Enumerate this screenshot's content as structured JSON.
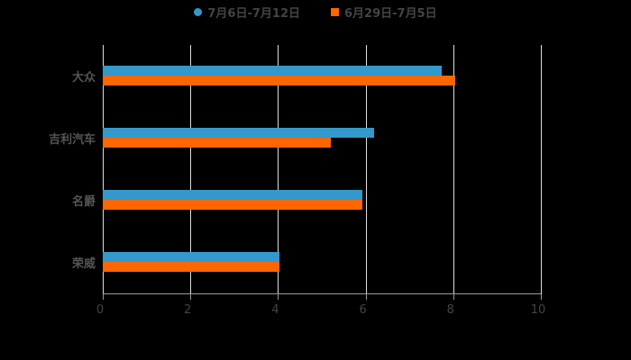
{
  "chart_data": {
    "type": "bar",
    "orientation": "horizontal",
    "title": "",
    "xlabel": "",
    "ylabel": "",
    "xlim": [
      0,
      10
    ],
    "x_ticks": [
      "0",
      "2",
      "4",
      "6",
      "8",
      "10"
    ],
    "grid": true,
    "legend_position": "top",
    "categories": [
      "大众",
      "吉利汽车",
      "名爵",
      "荣威"
    ],
    "series": [
      {
        "name": "7月6日-7月12日",
        "color": "#3399CC",
        "values": [
          7.74,
          6.2,
          5.93,
          4.03
        ]
      },
      {
        "name": "6月29日-7月5日",
        "color": "#FF6600",
        "values": [
          8.05,
          5.2,
          5.93,
          4.03
        ]
      }
    ]
  },
  "legend": [
    {
      "label": "7月6日-7月12日",
      "color": "#3399CC",
      "shape": "circle"
    },
    {
      "label": "6月29日-7月5日",
      "color": "#FF6600",
      "shape": "square"
    }
  ]
}
